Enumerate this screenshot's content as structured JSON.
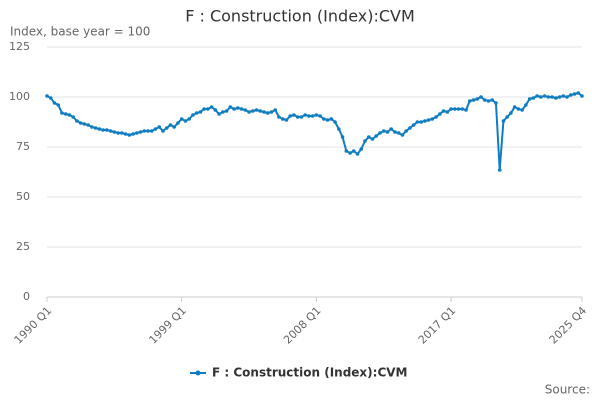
{
  "chart_data": {
    "type": "line",
    "title": "F : Construction (Index):CVM",
    "subtitle": "Index, base year = 100",
    "source": "Source:",
    "categories": [
      "1990 Q1",
      null,
      null,
      null,
      null,
      null,
      null,
      null,
      null,
      null,
      null,
      null,
      null,
      null,
      null,
      null,
      null,
      null,
      null,
      null,
      null,
      null,
      null,
      null,
      null,
      null,
      null,
      null,
      null,
      null,
      null,
      null,
      null,
      null,
      null,
      null,
      "1999 Q1",
      null,
      null,
      null,
      null,
      null,
      null,
      null,
      null,
      null,
      null,
      null,
      null,
      null,
      null,
      null,
      null,
      null,
      null,
      null,
      null,
      null,
      null,
      null,
      null,
      null,
      null,
      null,
      null,
      null,
      null,
      null,
      null,
      null,
      null,
      null,
      "2008 Q1",
      null,
      null,
      null,
      null,
      null,
      null,
      null,
      null,
      null,
      null,
      null,
      null,
      null,
      null,
      null,
      null,
      null,
      null,
      null,
      null,
      null,
      null,
      null,
      null,
      null,
      null,
      null,
      null,
      null,
      null,
      null,
      null,
      null,
      null,
      null,
      "2017 Q1",
      null,
      null,
      null,
      null,
      null,
      null,
      null,
      null,
      null,
      null,
      null,
      null,
      null,
      null,
      null,
      null,
      null,
      null,
      null,
      null,
      null,
      null,
      null,
      null,
      null,
      null,
      null,
      null,
      null,
      null,
      null,
      null,
      null,
      null,
      "2025 Q4"
    ],
    "series": [
      {
        "name": "F : Construction (Index):CVM",
        "color": "#0f7dc2",
        "values": [
          100.5,
          99.5,
          97,
          96,
          92,
          91.5,
          91,
          90,
          88,
          87,
          86.5,
          86,
          85,
          84.5,
          84,
          83.5,
          83.5,
          83,
          82.5,
          82,
          82,
          81.5,
          81,
          81.5,
          82,
          82.5,
          83,
          83,
          83,
          84,
          85,
          83,
          84.5,
          86,
          85,
          87,
          89,
          88,
          89,
          91,
          92,
          92.5,
          94,
          94,
          95,
          93.5,
          91.5,
          92.5,
          93,
          95,
          94,
          94.5,
          94,
          93.5,
          92.5,
          93,
          93.5,
          93,
          92.5,
          92,
          92.5,
          93.5,
          90,
          89,
          88.5,
          90.5,
          91,
          90,
          90,
          91,
          90.5,
          90.5,
          91,
          90.5,
          89,
          88.5,
          89,
          87.5,
          84,
          80,
          73,
          72,
          73,
          71.5,
          74,
          78,
          80,
          79,
          80.5,
          82,
          83,
          82.5,
          84,
          82.5,
          82,
          81,
          83,
          84.5,
          86,
          87.5,
          87.5,
          88,
          88.5,
          89,
          90,
          91.5,
          93,
          92.5,
          94,
          94,
          94,
          94,
          93.5,
          98,
          98.5,
          99,
          100,
          98.5,
          98,
          98.5,
          97,
          63.5,
          88,
          90,
          92,
          95,
          94,
          93.5,
          96,
          99,
          99.5,
          100.5,
          100,
          100.5,
          100,
          100,
          99.5,
          100,
          100.5,
          100,
          101,
          101.5,
          102,
          100.5
        ]
      }
    ],
    "ylim": [
      0,
      125
    ],
    "yticks": [
      0,
      25,
      50,
      75,
      100,
      125
    ],
    "grid": true
  }
}
